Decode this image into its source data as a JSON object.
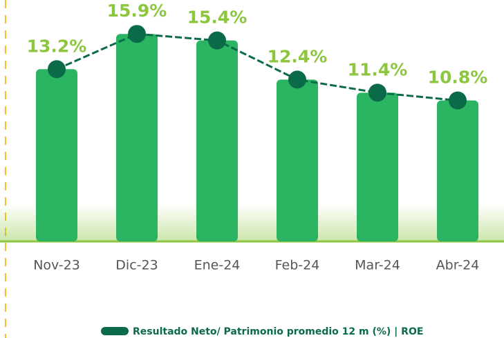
{
  "chart_data": {
    "type": "bar",
    "categories": [
      "Nov-23",
      "Dic-23",
      "Ene-24",
      "Feb-24",
      "Mar-24",
      "Abr-24"
    ],
    "series": [
      {
        "name": "Resultado Neto/ Patrimonio promedio 12 m  (%) | ROE",
        "color": "#2bb563",
        "line_color": "#0b6b48",
        "label_color": "#8cc63f",
        "values": [
          13.2,
          15.9,
          15.4,
          12.4,
          11.4,
          10.8
        ],
        "value_labels": [
          "13.2%",
          "15.9%",
          "15.4%",
          "12.4%",
          "11.4%",
          "10.8%"
        ]
      }
    ],
    "ylim": [
      0,
      18.5
    ]
  }
}
